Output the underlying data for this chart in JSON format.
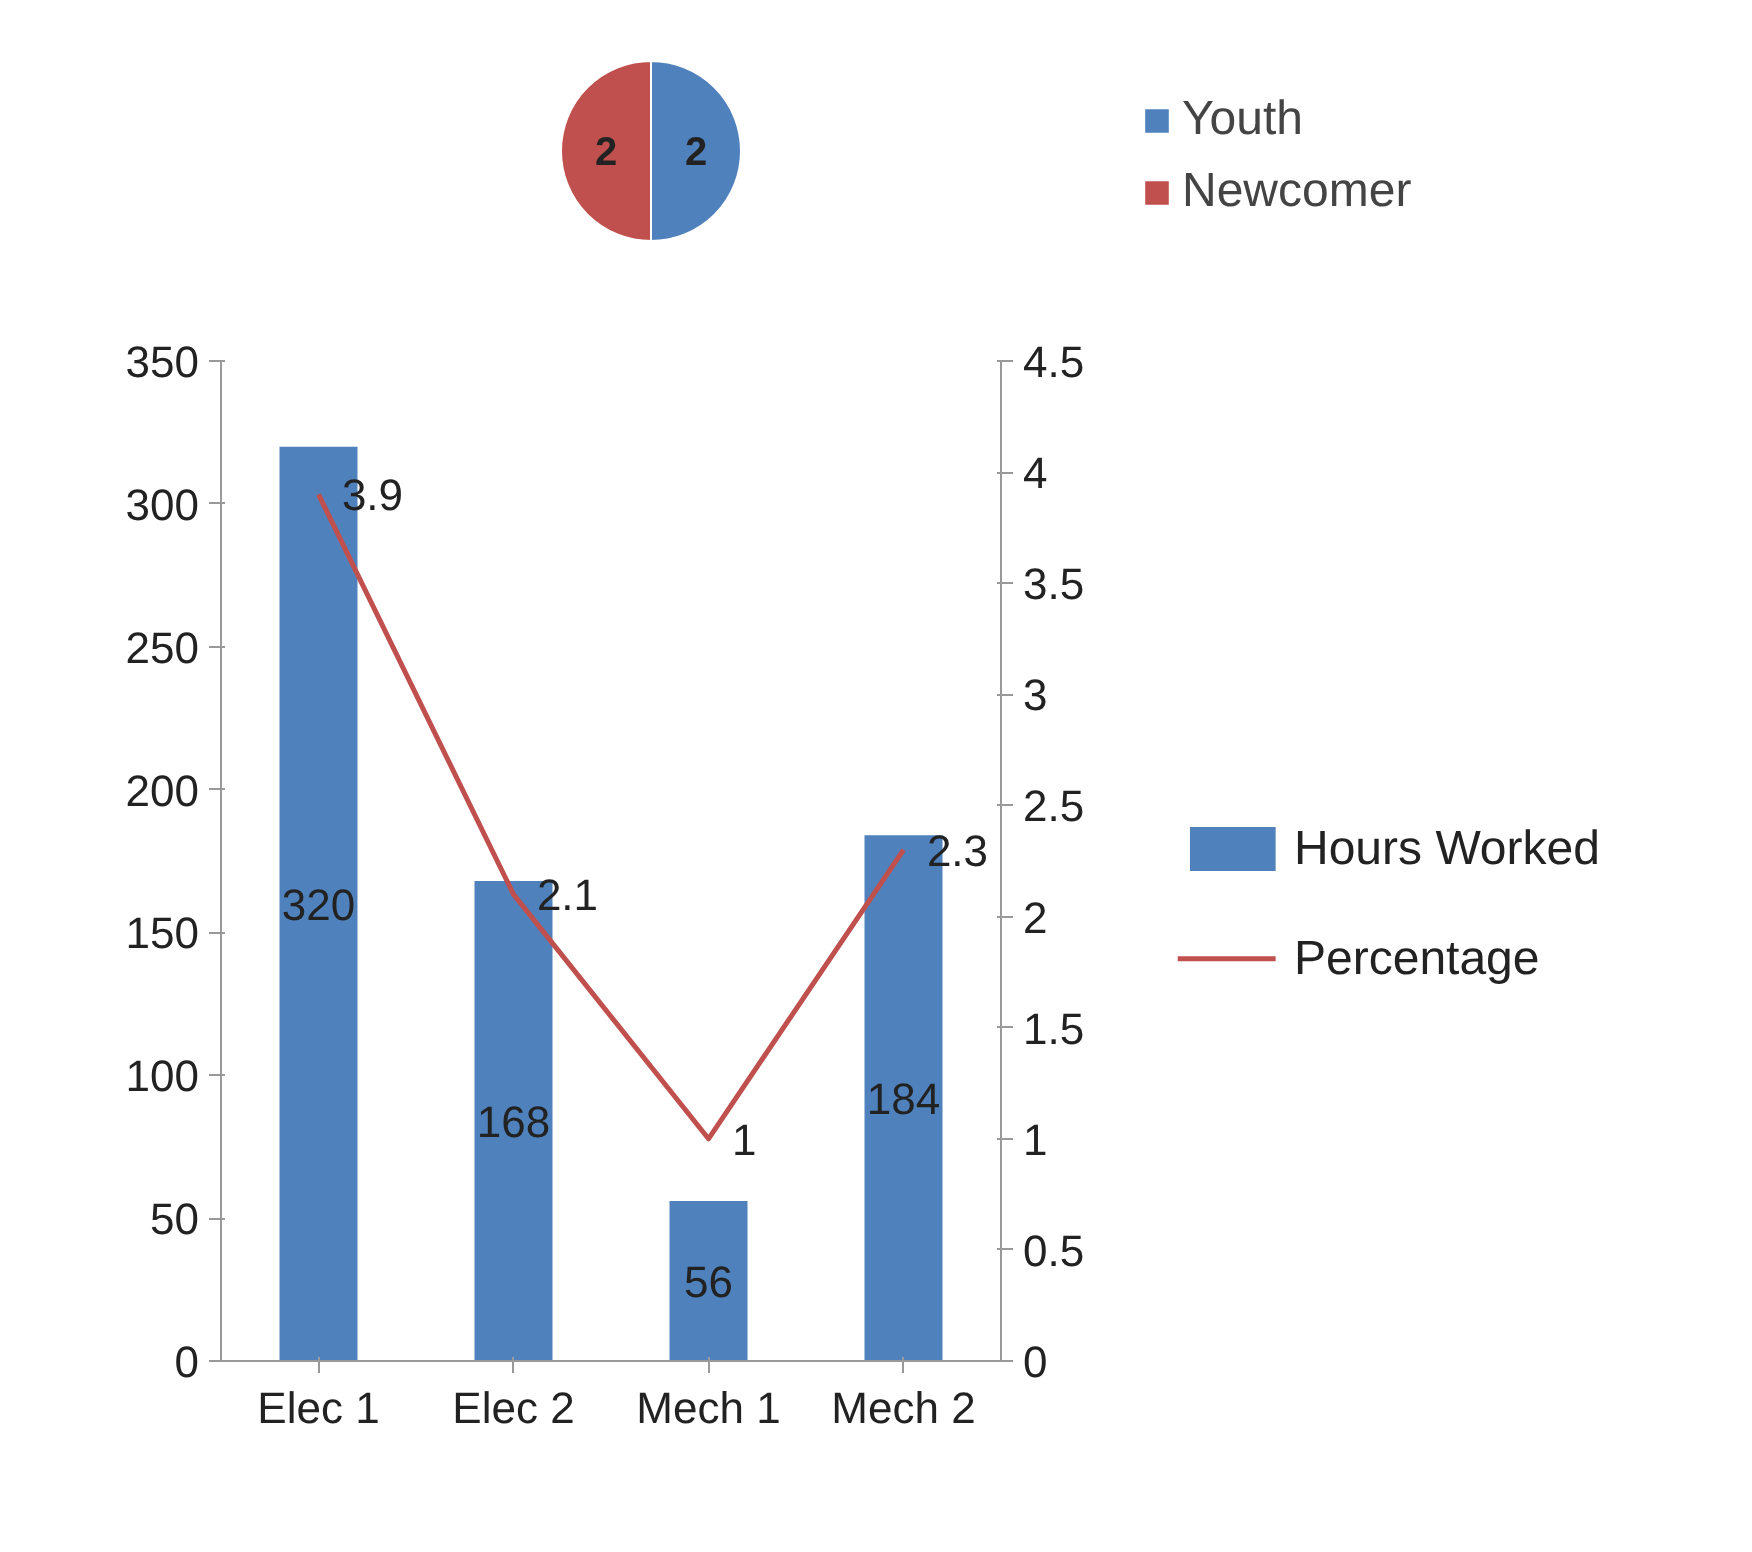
{
  "chart_data": [
    {
      "type": "pie",
      "categories": [
        "Youth",
        "Newcomer"
      ],
      "values": [
        2,
        2
      ],
      "colors": [
        "#4f81bd",
        "#c0504d"
      ],
      "data_labels": true,
      "legend": "right"
    },
    {
      "type": "bar",
      "categories": [
        "Elec 1",
        "Elec 2",
        "Mech 1",
        "Mech 2"
      ],
      "series": [
        {
          "name": "Hours Worked",
          "type": "bar",
          "color": "#4f81bd",
          "values": [
            320,
            168,
            56,
            184
          ]
        },
        {
          "name": "Percentage",
          "type": "line",
          "axis": "y2",
          "color": "#c0504d",
          "values": [
            3.9,
            2.1,
            1,
            2.3
          ]
        }
      ],
      "ylim": [
        0,
        350
      ],
      "yticks": [
        0,
        50,
        100,
        150,
        200,
        250,
        300,
        350
      ],
      "y2lim": [
        0,
        4.5
      ],
      "y2ticks": [
        0,
        0.5,
        1,
        1.5,
        2,
        2.5,
        3,
        3.5,
        4,
        4.5
      ],
      "data_labels": true,
      "legend": "right",
      "grid": false
    }
  ]
}
